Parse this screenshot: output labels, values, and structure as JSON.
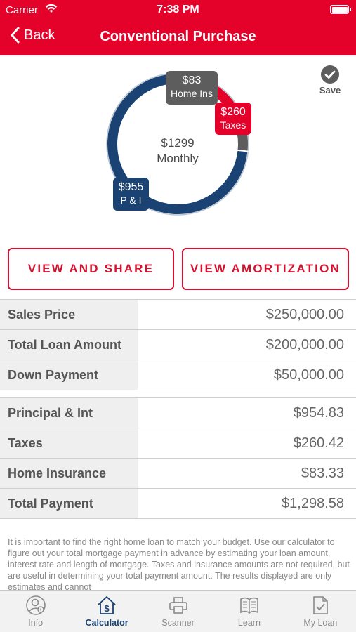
{
  "status": {
    "carrier": "Carrier",
    "time": "7:38 PM"
  },
  "nav": {
    "back_label": "Back",
    "title": "Conventional Purchase"
  },
  "chart_data": {
    "type": "pie",
    "categories": [
      "P & I",
      "Taxes",
      "Home Ins"
    ],
    "values": [
      955,
      260,
      83
    ],
    "total_label": "$1299",
    "total_caption": "Monthly",
    "colors": [
      "#1a4273",
      "#e4022b",
      "#5d5d5d"
    ],
    "bubbles": {
      "ins": {
        "value": "$83",
        "label": "Home Ins"
      },
      "tax": {
        "value": "$260",
        "label": "Taxes"
      },
      "pi": {
        "value": "$955",
        "label": "P & I"
      }
    }
  },
  "save_label": "Save",
  "buttons": {
    "share": "VIEW AND SHARE",
    "amortization": "VIEW AMORTIZATION"
  },
  "loan": [
    {
      "label": "Sales Price",
      "value": "$250,000.00"
    },
    {
      "label": "Total Loan Amount",
      "value": "$200,000.00"
    },
    {
      "label": "Down Payment",
      "value": "$50,000.00"
    }
  ],
  "payment": [
    {
      "label": "Principal & Int",
      "value": "$954.83"
    },
    {
      "label": "Taxes",
      "value": "$260.42"
    },
    {
      "label": "Home Insurance",
      "value": "$83.33"
    },
    {
      "label": "Total Payment",
      "value": "$1,298.58"
    }
  ],
  "disclaimer": "It is important to find the right home loan to match your budget. Use our calculator to figure out your total mortgage payment in advance by estimating your loan amount, interest rate and length of mortgage. Taxes and insurance amounts are not required, but are useful in determining your total payment amount.  The results displayed are only estimates and cannot",
  "tabs": [
    {
      "label": "Info",
      "icon": "person-info-icon"
    },
    {
      "label": "Calculator",
      "icon": "house-dollar-icon"
    },
    {
      "label": "Scanner",
      "icon": "printer-icon"
    },
    {
      "label": "Learn",
      "icon": "book-icon"
    },
    {
      "label": "My Loan",
      "icon": "document-check-icon"
    }
  ]
}
